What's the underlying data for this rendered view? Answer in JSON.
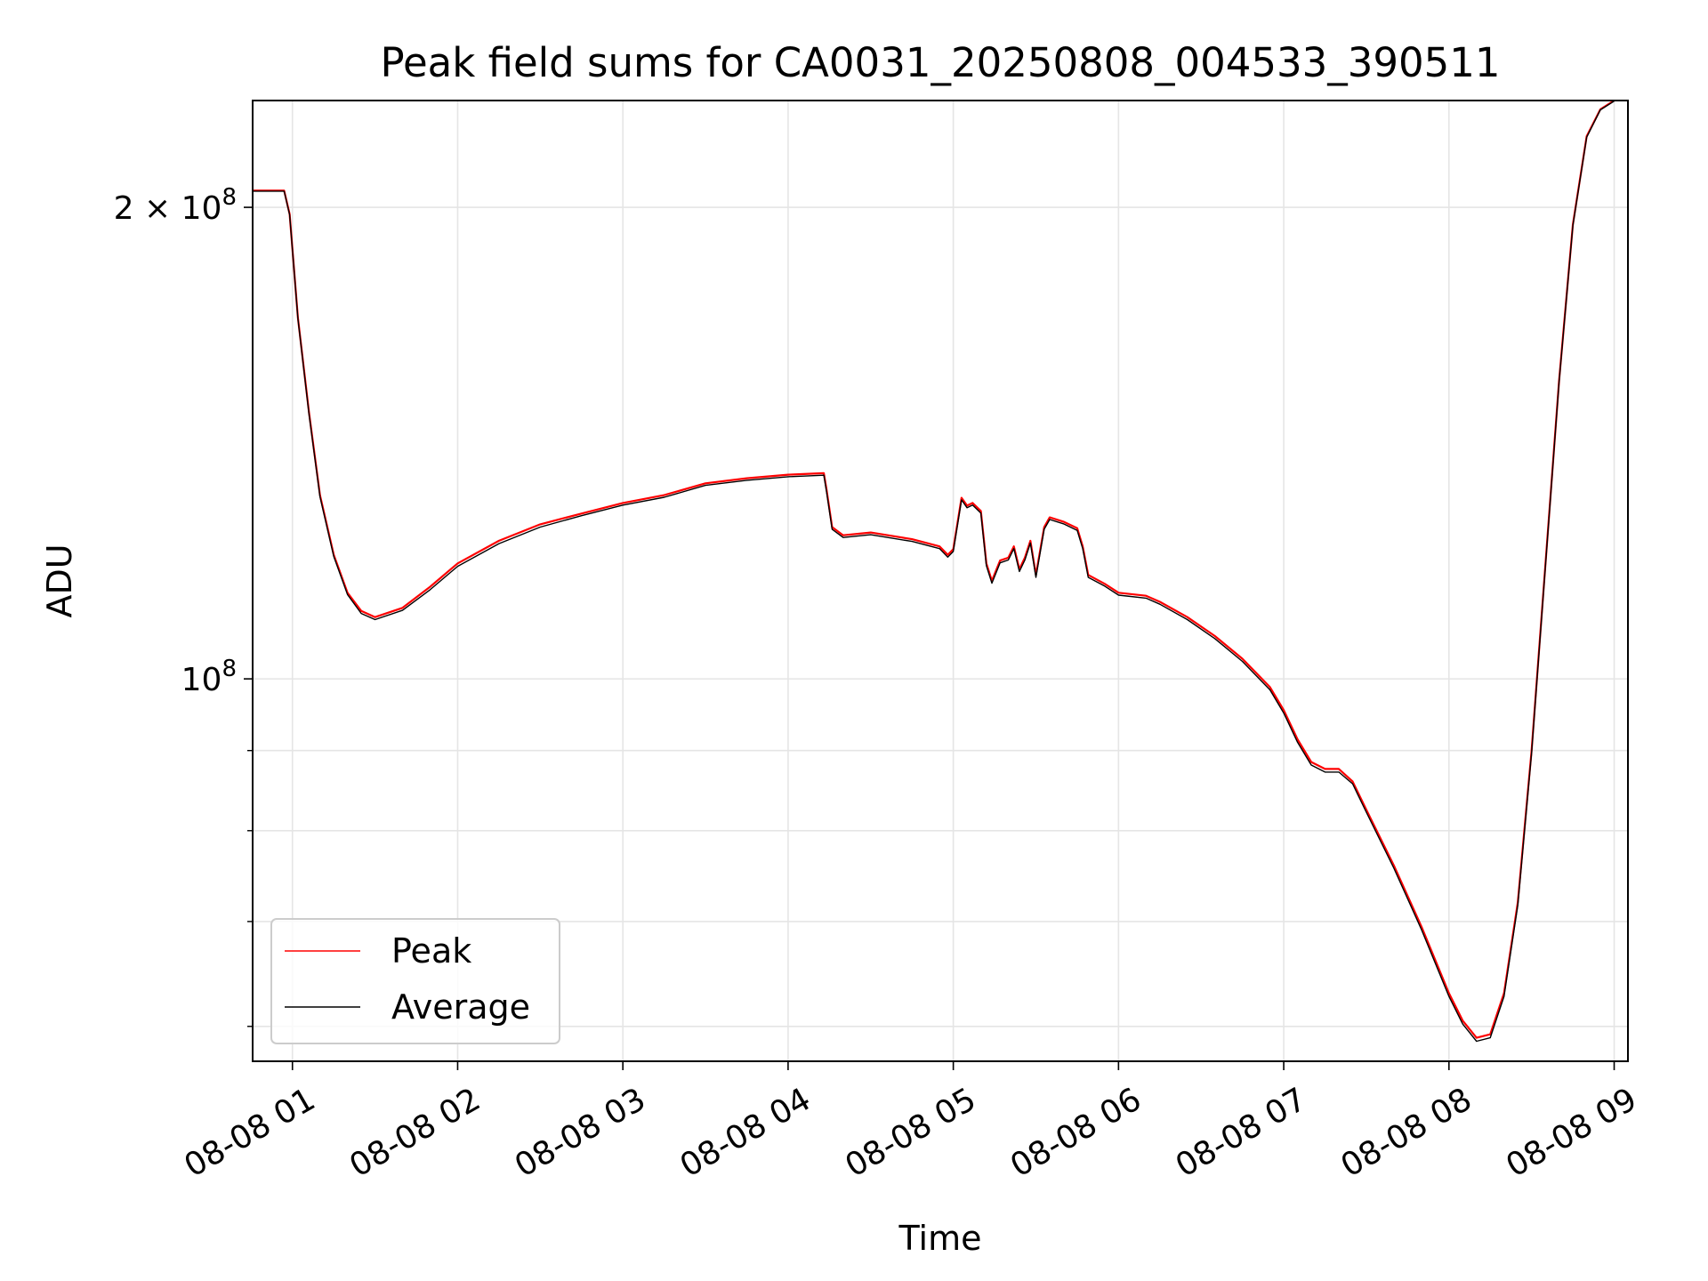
{
  "chart_data": {
    "type": "line",
    "title": "Peak field sums for CA0031_20250808_004533_390511",
    "xlabel": "Time",
    "ylabel": "ADU",
    "x_ticks": [
      "08-08 01",
      "08-08 02",
      "08-08 03",
      "08-08 04",
      "08-08 05",
      "08-08 06",
      "08-08 07",
      "08-08 08",
      "08-08 09"
    ],
    "y_ticks": [
      {
        "value": 100000000,
        "mantissa": "",
        "base": "10",
        "exp": "8"
      },
      {
        "value": 200000000,
        "mantissa": "2 × ",
        "base": "10",
        "exp": "8"
      }
    ],
    "y_minor_ticks": [
      60000000,
      70000000,
      80000000,
      90000000
    ],
    "x_range": [
      "2025-08-08T00:45:33",
      "2025-08-08T09:05:00"
    ],
    "y_range": [
      57000000,
      234000000
    ],
    "y_scale": "log",
    "grid": true,
    "legend_position": "lower-left",
    "series": [
      {
        "name": "Peak",
        "color": "#ff0000",
        "points": [
          [
            "2025-08-08T00:45:33",
            205000000
          ],
          [
            "2025-08-08T00:57:00",
            205000000
          ],
          [
            "2025-08-08T00:59:00",
            198000000
          ],
          [
            "2025-08-08T01:02:00",
            170000000
          ],
          [
            "2025-08-08T01:06:00",
            148000000
          ],
          [
            "2025-08-08T01:10:00",
            131000000
          ],
          [
            "2025-08-08T01:15:00",
            120000000
          ],
          [
            "2025-08-08T01:20:00",
            113500000
          ],
          [
            "2025-08-08T01:25:00",
            110500000
          ],
          [
            "2025-08-08T01:30:00",
            109500000
          ],
          [
            "2025-08-08T01:40:00",
            111000000
          ],
          [
            "2025-08-08T01:50:00",
            114500000
          ],
          [
            "2025-08-08T02:00:00",
            118500000
          ],
          [
            "2025-08-08T02:15:00",
            122500000
          ],
          [
            "2025-08-08T02:30:00",
            125500000
          ],
          [
            "2025-08-08T02:45:00",
            127500000
          ],
          [
            "2025-08-08T03:00:00",
            129500000
          ],
          [
            "2025-08-08T03:15:00",
            131000000
          ],
          [
            "2025-08-08T03:30:00",
            133300000
          ],
          [
            "2025-08-08T03:45:00",
            134300000
          ],
          [
            "2025-08-08T04:00:00",
            135000000
          ],
          [
            "2025-08-08T04:13:00",
            135300000
          ],
          [
            "2025-08-08T04:14:00",
            132000000
          ],
          [
            "2025-08-08T04:16:00",
            125000000
          ],
          [
            "2025-08-08T04:20:00",
            123500000
          ],
          [
            "2025-08-08T04:30:00",
            124000000
          ],
          [
            "2025-08-08T04:45:00",
            122800000
          ],
          [
            "2025-08-08T04:55:00",
            121500000
          ],
          [
            "2025-08-08T04:58:00",
            120000000
          ],
          [
            "2025-08-08T05:00:00",
            121000000
          ],
          [
            "2025-08-08T05:03:00",
            130500000
          ],
          [
            "2025-08-08T05:05:00",
            129000000
          ],
          [
            "2025-08-08T05:07:00",
            129500000
          ],
          [
            "2025-08-08T05:10:00",
            128000000
          ],
          [
            "2025-08-08T05:12:00",
            118500000
          ],
          [
            "2025-08-08T05:14:00",
            115500000
          ],
          [
            "2025-08-08T05:17:00",
            119000000
          ],
          [
            "2025-08-08T05:20:00",
            119500000
          ],
          [
            "2025-08-08T05:22:00",
            121500000
          ],
          [
            "2025-08-08T05:24:00",
            117500000
          ],
          [
            "2025-08-08T05:26:00",
            119500000
          ],
          [
            "2025-08-08T05:28:00",
            122500000
          ],
          [
            "2025-08-08T05:30:00",
            116500000
          ],
          [
            "2025-08-08T05:33:00",
            125000000
          ],
          [
            "2025-08-08T05:35:00",
            126800000
          ],
          [
            "2025-08-08T05:40:00",
            126000000
          ],
          [
            "2025-08-08T05:45:00",
            124800000
          ],
          [
            "2025-08-08T05:47:00",
            121500000
          ],
          [
            "2025-08-08T05:49:00",
            116500000
          ],
          [
            "2025-08-08T05:55:00",
            115000000
          ],
          [
            "2025-08-08T06:00:00",
            113500000
          ],
          [
            "2025-08-08T06:10:00",
            113000000
          ],
          [
            "2025-08-08T06:15:00",
            112000000
          ],
          [
            "2025-08-08T06:25:00",
            109500000
          ],
          [
            "2025-08-08T06:35:00",
            106500000
          ],
          [
            "2025-08-08T06:45:00",
            103000000
          ],
          [
            "2025-08-08T06:55:00",
            98800000
          ],
          [
            "2025-08-08T07:00:00",
            95500000
          ],
          [
            "2025-08-08T07:05:00",
            91500000
          ],
          [
            "2025-08-08T07:10:00",
            88500000
          ],
          [
            "2025-08-08T07:15:00",
            87600000
          ],
          [
            "2025-08-08T07:20:00",
            87600000
          ],
          [
            "2025-08-08T07:25:00",
            86000000
          ],
          [
            "2025-08-08T07:30:00",
            82500000
          ],
          [
            "2025-08-08T07:40:00",
            76000000
          ],
          [
            "2025-08-08T07:50:00",
            69500000
          ],
          [
            "2025-08-08T08:00:00",
            63000000
          ],
          [
            "2025-08-08T08:05:00",
            60500000
          ],
          [
            "2025-08-08T08:10:00",
            59000000
          ],
          [
            "2025-08-08T08:15:00",
            59300000
          ],
          [
            "2025-08-08T08:20:00",
            63000000
          ],
          [
            "2025-08-08T08:25:00",
            72000000
          ],
          [
            "2025-08-08T08:30:00",
            90000000
          ],
          [
            "2025-08-08T08:35:00",
            118000000
          ],
          [
            "2025-08-08T08:40:00",
            155000000
          ],
          [
            "2025-08-08T08:45:00",
            195000000
          ],
          [
            "2025-08-08T08:50:00",
            222000000
          ],
          [
            "2025-08-08T08:55:00",
            231000000
          ],
          [
            "2025-08-08T09:00:00",
            234000000
          ]
        ]
      },
      {
        "name": "Average",
        "color": "#000000",
        "points": [
          [
            "2025-08-08T00:45:33",
            204800000
          ],
          [
            "2025-08-08T00:57:00",
            204800000
          ],
          [
            "2025-08-08T00:59:00",
            197800000
          ],
          [
            "2025-08-08T01:02:00",
            169800000
          ],
          [
            "2025-08-08T01:06:00",
            147700000
          ],
          [
            "2025-08-08T01:10:00",
            130700000
          ],
          [
            "2025-08-08T01:15:00",
            119700000
          ],
          [
            "2025-08-08T01:20:00",
            113200000
          ],
          [
            "2025-08-08T01:25:00",
            110100000
          ],
          [
            "2025-08-08T01:30:00",
            109100000
          ],
          [
            "2025-08-08T01:40:00",
            110600000
          ],
          [
            "2025-08-08T01:50:00",
            114000000
          ],
          [
            "2025-08-08T02:00:00",
            118000000
          ],
          [
            "2025-08-08T02:15:00",
            122000000
          ],
          [
            "2025-08-08T02:30:00",
            125000000
          ],
          [
            "2025-08-08T02:45:00",
            127100000
          ],
          [
            "2025-08-08T03:00:00",
            129100000
          ],
          [
            "2025-08-08T03:15:00",
            130600000
          ],
          [
            "2025-08-08T03:30:00",
            132900000
          ],
          [
            "2025-08-08T03:45:00",
            133900000
          ],
          [
            "2025-08-08T04:00:00",
            134600000
          ],
          [
            "2025-08-08T04:13:00",
            134900000
          ],
          [
            "2025-08-08T04:14:00",
            131600000
          ],
          [
            "2025-08-08T04:16:00",
            124600000
          ],
          [
            "2025-08-08T04:20:00",
            123100000
          ],
          [
            "2025-08-08T04:30:00",
            123600000
          ],
          [
            "2025-08-08T04:45:00",
            122400000
          ],
          [
            "2025-08-08T04:55:00",
            121100000
          ],
          [
            "2025-08-08T04:58:00",
            119600000
          ],
          [
            "2025-08-08T05:00:00",
            120600000
          ],
          [
            "2025-08-08T05:03:00",
            130100000
          ],
          [
            "2025-08-08T05:05:00",
            128600000
          ],
          [
            "2025-08-08T05:07:00",
            129100000
          ],
          [
            "2025-08-08T05:10:00",
            127600000
          ],
          [
            "2025-08-08T05:12:00",
            118100000
          ],
          [
            "2025-08-08T05:14:00",
            115100000
          ],
          [
            "2025-08-08T05:17:00",
            118600000
          ],
          [
            "2025-08-08T05:20:00",
            119100000
          ],
          [
            "2025-08-08T05:22:00",
            121100000
          ],
          [
            "2025-08-08T05:24:00",
            117100000
          ],
          [
            "2025-08-08T05:26:00",
            119100000
          ],
          [
            "2025-08-08T05:28:00",
            122100000
          ],
          [
            "2025-08-08T05:30:00",
            116100000
          ],
          [
            "2025-08-08T05:33:00",
            124600000
          ],
          [
            "2025-08-08T05:35:00",
            126400000
          ],
          [
            "2025-08-08T05:40:00",
            125600000
          ],
          [
            "2025-08-08T05:45:00",
            124400000
          ],
          [
            "2025-08-08T05:47:00",
            121100000
          ],
          [
            "2025-08-08T05:49:00",
            116100000
          ],
          [
            "2025-08-08T05:55:00",
            114600000
          ],
          [
            "2025-08-08T06:00:00",
            113100000
          ],
          [
            "2025-08-08T06:10:00",
            112600000
          ],
          [
            "2025-08-08T06:15:00",
            111600000
          ],
          [
            "2025-08-08T06:25:00",
            109100000
          ],
          [
            "2025-08-08T06:35:00",
            106100000
          ],
          [
            "2025-08-08T06:45:00",
            102600000
          ],
          [
            "2025-08-08T06:55:00",
            98400000
          ],
          [
            "2025-08-08T07:00:00",
            95100000
          ],
          [
            "2025-08-08T07:05:00",
            91100000
          ],
          [
            "2025-08-08T07:10:00",
            88100000
          ],
          [
            "2025-08-08T07:15:00",
            87200000
          ],
          [
            "2025-08-08T07:20:00",
            87200000
          ],
          [
            "2025-08-08T07:25:00",
            85700000
          ],
          [
            "2025-08-08T07:30:00",
            82200000
          ],
          [
            "2025-08-08T07:40:00",
            75700000
          ],
          [
            "2025-08-08T07:50:00",
            69200000
          ],
          [
            "2025-08-08T08:00:00",
            62700000
          ],
          [
            "2025-08-08T08:05:00",
            60200000
          ],
          [
            "2025-08-08T08:10:00",
            58700000
          ],
          [
            "2025-08-08T08:15:00",
            59000000
          ],
          [
            "2025-08-08T08:20:00",
            62700000
          ],
          [
            "2025-08-08T08:25:00",
            71700000
          ],
          [
            "2025-08-08T08:30:00",
            89700000
          ],
          [
            "2025-08-08T08:35:00",
            117700000
          ],
          [
            "2025-08-08T08:40:00",
            154700000
          ],
          [
            "2025-08-08T08:45:00",
            194700000
          ],
          [
            "2025-08-08T08:50:00",
            221700000
          ],
          [
            "2025-08-08T08:55:00",
            230800000
          ],
          [
            "2025-08-08T09:00:00",
            233800000
          ]
        ]
      }
    ]
  }
}
